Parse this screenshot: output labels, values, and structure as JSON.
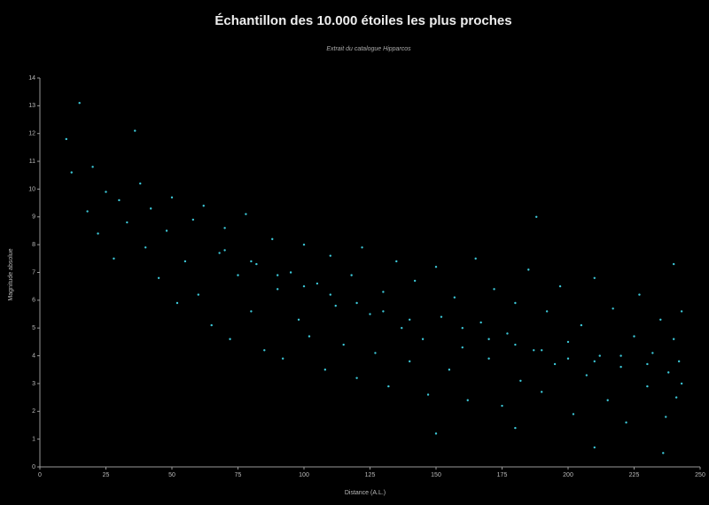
{
  "chart_data": {
    "type": "scatter",
    "title": "Échantillon des 10.000 étoiles les plus proches",
    "subtitle": "Extrait du catalogue Hipparcos",
    "x_label": "Distance (A.L.)",
    "y_label": "Magnitude absolue",
    "color": "#3cc8d8",
    "xlim": [
      0,
      250
    ],
    "xticks": [
      0,
      25,
      50,
      75,
      100,
      125,
      150,
      175,
      200,
      225,
      250
    ],
    "ylim": [
      0,
      14
    ],
    "yticks": [
      0,
      1,
      2,
      3,
      4,
      5,
      6,
      7,
      8,
      9,
      10,
      11,
      12,
      13,
      14
    ],
    "x": [
      10,
      12,
      15,
      18,
      20,
      22,
      25,
      28,
      30,
      33,
      36,
      38,
      40,
      42,
      45,
      48,
      50,
      52,
      55,
      58,
      60,
      62,
      65,
      68,
      70,
      72,
      75,
      78,
      80,
      82,
      85,
      88,
      90,
      92,
      95,
      98,
      100,
      102,
      105,
      108,
      110,
      112,
      115,
      118,
      120,
      122,
      125,
      127,
      130,
      132,
      135,
      137,
      140,
      142,
      145,
      147,
      150,
      150,
      152,
      155,
      157,
      160,
      162,
      165,
      167,
      170,
      172,
      175,
      177,
      180,
      182,
      185,
      187,
      188,
      190,
      192,
      195,
      197,
      200,
      202,
      205,
      207,
      210,
      212,
      215,
      217,
      220,
      222,
      225,
      227,
      230,
      232,
      235,
      237,
      238,
      240,
      240,
      241,
      242,
      243,
      243,
      236,
      210,
      180,
      160,
      170,
      180,
      190,
      200,
      210,
      220,
      230,
      140,
      130,
      120,
      110,
      100,
      90,
      80,
      70
    ],
    "values": [
      11.8,
      10.6,
      13.1,
      9.2,
      10.8,
      8.4,
      9.9,
      7.5,
      9.6,
      8.8,
      12.1,
      10.2,
      7.9,
      9.3,
      6.8,
      8.5,
      9.7,
      5.9,
      7.4,
      8.9,
      6.2,
      9.4,
      5.1,
      7.7,
      8.6,
      4.6,
      6.9,
      9.1,
      5.6,
      7.3,
      4.2,
      8.2,
      6.4,
      3.9,
      7.0,
      5.3,
      8.0,
      4.7,
      6.6,
      3.5,
      7.6,
      5.8,
      4.4,
      6.9,
      3.2,
      7.9,
      5.5,
      4.1,
      6.3,
      2.9,
      7.4,
      5.0,
      3.8,
      6.7,
      4.6,
      2.6,
      7.2,
      1.2,
      5.4,
      3.5,
      6.1,
      4.3,
      2.4,
      7.5,
      5.2,
      3.9,
      6.4,
      2.2,
      4.8,
      5.9,
      3.1,
      7.1,
      4.2,
      9.0,
      2.7,
      5.6,
      3.7,
      6.5,
      4.5,
      1.9,
      5.1,
      3.3,
      6.8,
      4.0,
      2.4,
      5.7,
      3.6,
      1.6,
      4.7,
      6.2,
      2.9,
      4.1,
      5.3,
      1.8,
      3.4,
      7.3,
      4.6,
      2.5,
      3.8,
      5.6,
      3.0,
      0.5,
      0.7,
      1.4,
      5.0,
      4.6,
      4.4,
      4.2,
      3.9,
      3.8,
      4.0,
      3.7,
      5.3,
      5.6,
      5.9,
      6.2,
      6.5,
      6.9,
      7.4,
      7.8
    ]
  }
}
